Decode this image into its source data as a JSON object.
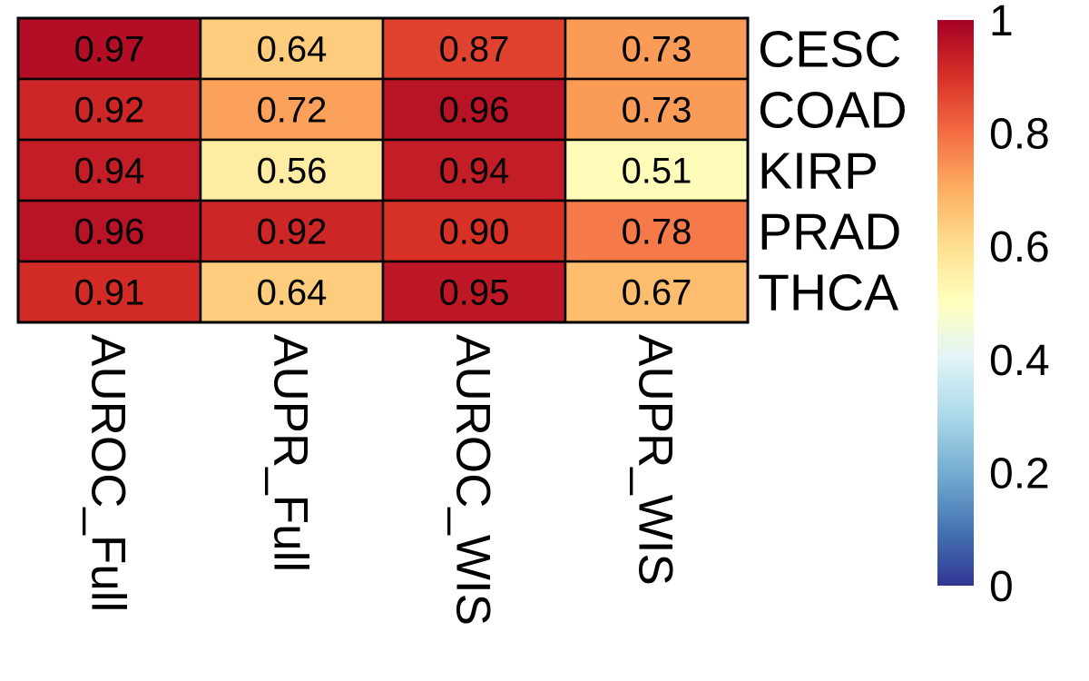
{
  "chart_data": {
    "type": "heatmap",
    "rows": [
      "CESC",
      "COAD",
      "KIRP",
      "PRAD",
      "THCA"
    ],
    "columns": [
      "AUROC_Full",
      "AUPR_Full",
      "AUROC_WIS",
      "AUPR_WIS"
    ],
    "values": [
      [
        0.97,
        0.64,
        0.87,
        0.73
      ],
      [
        0.92,
        0.72,
        0.96,
        0.73
      ],
      [
        0.94,
        0.56,
        0.94,
        0.51
      ],
      [
        0.96,
        0.92,
        0.9,
        0.78
      ],
      [
        0.91,
        0.64,
        0.95,
        0.67
      ]
    ],
    "value_labels": [
      [
        "0.97",
        "0.64",
        "0.87",
        "0.73"
      ],
      [
        "0.92",
        "0.72",
        "0.96",
        "0.73"
      ],
      [
        "0.94",
        "0.56",
        "0.94",
        "0.51"
      ],
      [
        "0.96",
        "0.92",
        "0.90",
        "0.78"
      ],
      [
        "0.91",
        "0.64",
        "0.95",
        "0.67"
      ]
    ],
    "colorbar": {
      "range": [
        0,
        1
      ],
      "ticks": [
        0,
        0.2,
        0.4,
        0.6,
        0.8,
        1
      ],
      "tick_labels": [
        "0",
        "0.2",
        "0.4",
        "0.6",
        "0.8",
        "1"
      ],
      "palette": [
        "#313695",
        "#4575b4",
        "#74add1",
        "#abd9e9",
        "#e0f3f8",
        "#ffffbf",
        "#fee090",
        "#fdae61",
        "#f46d43",
        "#d73027",
        "#a50026"
      ]
    },
    "title": "",
    "legend_position": "right",
    "cell_border_color": "#000000"
  }
}
